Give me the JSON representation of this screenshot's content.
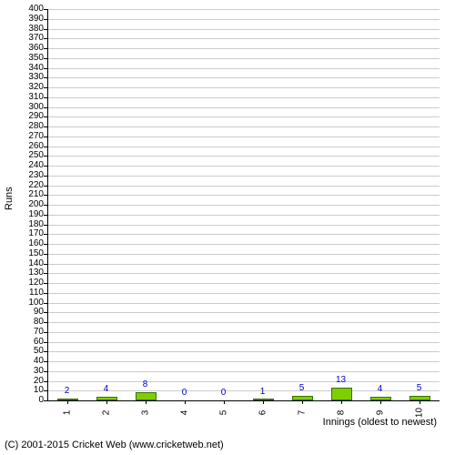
{
  "chart": {
    "type": "bar",
    "background_color": "#ffffff",
    "grid_color": "#cccccc",
    "y_axis": {
      "title": "Runs",
      "min": 0,
      "max": 400,
      "tick_step": 10,
      "label_fontsize": 10
    },
    "x_axis": {
      "title": "Innings (oldest to newest)",
      "categories": [
        "1",
        "2",
        "3",
        "4",
        "5",
        "6",
        "7",
        "8",
        "9",
        "10"
      ],
      "label_fontsize": 10
    },
    "bars": {
      "values": [
        2,
        4,
        8,
        0,
        0,
        1,
        5,
        13,
        4,
        5
      ],
      "fill_color": "#7fce00",
      "border_color": "#397100",
      "width_fraction": 0.55
    },
    "value_labels": {
      "color": "#0000cc",
      "fontsize": 10
    },
    "copyright": "(C) 2001-2015 Cricket Web (www.cricketweb.net)"
  }
}
